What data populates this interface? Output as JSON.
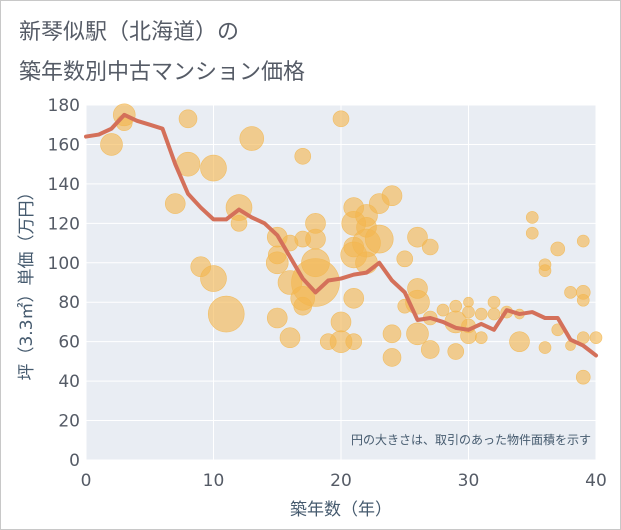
{
  "chart_data": {
    "type": "scatter",
    "title_lines": [
      "新琴似駅（北海道）の",
      "築年数別中古マンション価格"
    ],
    "xlabel": "築年数（年）",
    "ylabel": "坪（3.3㎡）単価（万円）",
    "xlim": [
      0,
      40
    ],
    "ylim": [
      0,
      180
    ],
    "xticks": [
      0,
      10,
      20,
      30,
      40
    ],
    "yticks": [
      0,
      20,
      40,
      60,
      80,
      100,
      120,
      140,
      160,
      180
    ],
    "grid": true,
    "note": "円の大きさは、取引のあった物件面積を示す",
    "bubble_color": "#f3b74f",
    "line_color": "#d4705a",
    "points": [
      {
        "x": 2,
        "y": 160,
        "s": 11
      },
      {
        "x": 3,
        "y": 175,
        "s": 11
      },
      {
        "x": 3,
        "y": 171,
        "s": 8
      },
      {
        "x": 8,
        "y": 173,
        "s": 9
      },
      {
        "x": 8,
        "y": 150,
        "s": 12
      },
      {
        "x": 7,
        "y": 130,
        "s": 10
      },
      {
        "x": 10,
        "y": 148,
        "s": 13
      },
      {
        "x": 13,
        "y": 163,
        "s": 12
      },
      {
        "x": 12,
        "y": 128,
        "s": 13
      },
      {
        "x": 12,
        "y": 120,
        "s": 8
      },
      {
        "x": 9,
        "y": 98,
        "s": 10
      },
      {
        "x": 10,
        "y": 92,
        "s": 13
      },
      {
        "x": 11,
        "y": 74,
        "s": 18
      },
      {
        "x": 15,
        "y": 113,
        "s": 10
      },
      {
        "x": 15,
        "y": 104,
        "s": 9
      },
      {
        "x": 15,
        "y": 100,
        "s": 11
      },
      {
        "x": 16,
        "y": 110,
        "s": 8
      },
      {
        "x": 16,
        "y": 90,
        "s": 12
      },
      {
        "x": 15,
        "y": 72,
        "s": 10
      },
      {
        "x": 16,
        "y": 62,
        "s": 10
      },
      {
        "x": 17,
        "y": 154,
        "s": 8
      },
      {
        "x": 17,
        "y": 112,
        "s": 8
      },
      {
        "x": 17,
        "y": 82,
        "s": 12
      },
      {
        "x": 17,
        "y": 78,
        "s": 9
      },
      {
        "x": 18,
        "y": 120,
        "s": 10
      },
      {
        "x": 18,
        "y": 112,
        "s": 10
      },
      {
        "x": 18,
        "y": 100,
        "s": 14
      },
      {
        "x": 18,
        "y": 90,
        "s": 24
      },
      {
        "x": 19,
        "y": 60,
        "s": 8
      },
      {
        "x": 20,
        "y": 173,
        "s": 8
      },
      {
        "x": 20,
        "y": 70,
        "s": 10
      },
      {
        "x": 20,
        "y": 60,
        "s": 11
      },
      {
        "x": 21,
        "y": 128,
        "s": 10
      },
      {
        "x": 21,
        "y": 120,
        "s": 12
      },
      {
        "x": 21,
        "y": 108,
        "s": 10
      },
      {
        "x": 21,
        "y": 104,
        "s": 13
      },
      {
        "x": 21,
        "y": 82,
        "s": 10
      },
      {
        "x": 21,
        "y": 60,
        "s": 8
      },
      {
        "x": 22,
        "y": 124,
        "s": 11
      },
      {
        "x": 22,
        "y": 118,
        "s": 10
      },
      {
        "x": 22,
        "y": 110,
        "s": 14
      },
      {
        "x": 22,
        "y": 100,
        "s": 11
      },
      {
        "x": 23,
        "y": 130,
        "s": 10
      },
      {
        "x": 23,
        "y": 112,
        "s": 14
      },
      {
        "x": 24,
        "y": 134,
        "s": 10
      },
      {
        "x": 24,
        "y": 64,
        "s": 9
      },
      {
        "x": 24,
        "y": 52,
        "s": 9
      },
      {
        "x": 25,
        "y": 102,
        "s": 8
      },
      {
        "x": 25,
        "y": 78,
        "s": 7
      },
      {
        "x": 26,
        "y": 113,
        "s": 10
      },
      {
        "x": 26,
        "y": 87,
        "s": 10
      },
      {
        "x": 26,
        "y": 80,
        "s": 12
      },
      {
        "x": 26,
        "y": 64,
        "s": 11
      },
      {
        "x": 27,
        "y": 108,
        "s": 8
      },
      {
        "x": 27,
        "y": 72,
        "s": 7
      },
      {
        "x": 27,
        "y": 56,
        "s": 9
      },
      {
        "x": 28,
        "y": 76,
        "s": 6
      },
      {
        "x": 29,
        "y": 78,
        "s": 6
      },
      {
        "x": 29,
        "y": 70,
        "s": 11
      },
      {
        "x": 29,
        "y": 55,
        "s": 8
      },
      {
        "x": 30,
        "y": 80,
        "s": 5
      },
      {
        "x": 30,
        "y": 75,
        "s": 6
      },
      {
        "x": 30,
        "y": 68,
        "s": 7
      },
      {
        "x": 30,
        "y": 63,
        "s": 8
      },
      {
        "x": 31,
        "y": 74,
        "s": 6
      },
      {
        "x": 31,
        "y": 62,
        "s": 6
      },
      {
        "x": 32,
        "y": 80,
        "s": 6
      },
      {
        "x": 32,
        "y": 74,
        "s": 6
      },
      {
        "x": 33,
        "y": 75,
        "s": 6
      },
      {
        "x": 34,
        "y": 74,
        "s": 5
      },
      {
        "x": 34,
        "y": 60,
        "s": 10
      },
      {
        "x": 35,
        "y": 123,
        "s": 6
      },
      {
        "x": 35,
        "y": 115,
        "s": 6
      },
      {
        "x": 36,
        "y": 99,
        "s": 6
      },
      {
        "x": 36,
        "y": 96,
        "s": 6
      },
      {
        "x": 36,
        "y": 57,
        "s": 6
      },
      {
        "x": 37,
        "y": 107,
        "s": 7
      },
      {
        "x": 37,
        "y": 66,
        "s": 6
      },
      {
        "x": 38,
        "y": 85,
        "s": 6
      },
      {
        "x": 38,
        "y": 58,
        "s": 5
      },
      {
        "x": 39,
        "y": 111,
        "s": 6
      },
      {
        "x": 39,
        "y": 85,
        "s": 7
      },
      {
        "x": 39,
        "y": 81,
        "s": 6
      },
      {
        "x": 39,
        "y": 62,
        "s": 6
      },
      {
        "x": 39,
        "y": 42,
        "s": 7
      },
      {
        "x": 40,
        "y": 62,
        "s": 6
      }
    ],
    "line": {
      "x": [
        0,
        1,
        2,
        3,
        4,
        5,
        6,
        7,
        8,
        9,
        10,
        11,
        12,
        13,
        14,
        15,
        16,
        17,
        18,
        19,
        20,
        21,
        22,
        23,
        24,
        25,
        26,
        27,
        28,
        29,
        30,
        31,
        32,
        33,
        34,
        35,
        36,
        37,
        38,
        39,
        40
      ],
      "y": [
        164,
        165,
        168,
        175,
        172,
        170,
        168,
        150,
        135,
        128,
        122,
        122,
        127,
        123,
        120,
        114,
        103,
        92,
        85,
        91,
        92,
        94,
        95,
        100,
        91,
        85,
        71,
        72,
        70,
        67,
        66,
        69,
        66,
        76,
        74,
        75,
        72,
        72,
        61,
        58,
        53
      ]
    }
  }
}
